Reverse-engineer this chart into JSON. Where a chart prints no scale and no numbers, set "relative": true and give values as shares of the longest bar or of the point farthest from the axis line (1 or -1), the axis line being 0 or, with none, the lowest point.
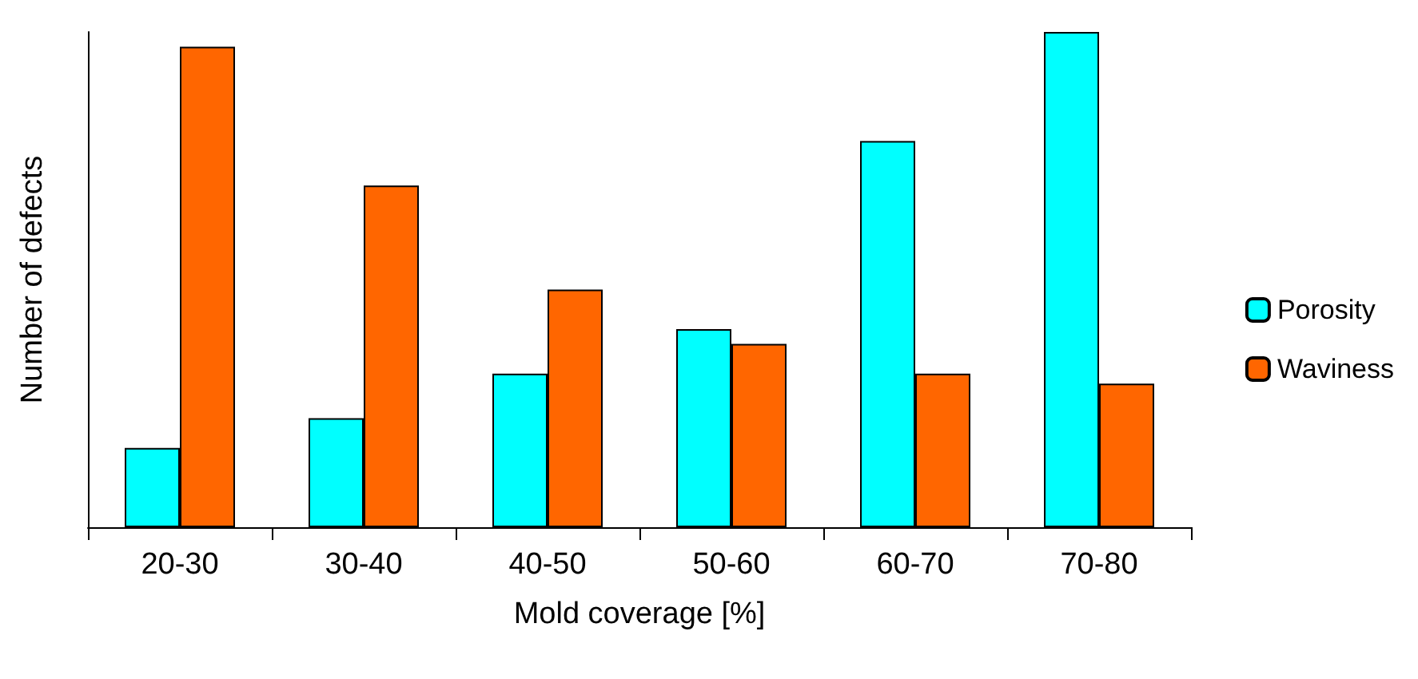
{
  "chart_data": {
    "type": "bar",
    "xlabel": "Mold coverage [%]",
    "ylabel": "Number of defects",
    "relative": true,
    "categories": [
      "20-30",
      "30-40",
      "40-50",
      "50-60",
      "60-70",
      "70-80"
    ],
    "series": [
      {
        "name": "Porosity",
        "color": "#00ffff",
        "values": [
          0.16,
          0.22,
          0.31,
          0.4,
          0.78,
          1
        ]
      },
      {
        "name": "Waviness",
        "color": "#ff6600",
        "values": [
          0.97,
          0.69,
          0.48,
          0.37,
          0.31,
          0.29
        ]
      }
    ],
    "grid": false,
    "legend": "right"
  }
}
